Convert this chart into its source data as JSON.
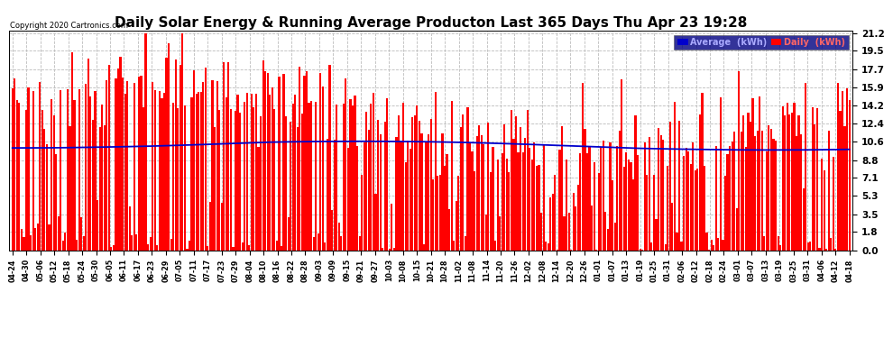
{
  "title": "Daily Solar Energy & Running Average Producton Last 365 Days Thu Apr 23 19:28",
  "copyright": "Copyright 2020 Cartronics.com",
  "yticks": [
    0.0,
    1.8,
    3.5,
    5.3,
    7.1,
    8.8,
    10.6,
    12.4,
    14.2,
    15.9,
    17.7,
    19.5,
    21.2
  ],
  "ymax": 21.5,
  "ymin": 0.0,
  "bar_color": "#ff0000",
  "avg_color": "#0000cc",
  "bg_color": "#ffffff",
  "grid_color": "#bbbbbb",
  "title_fontsize": 11,
  "legend_avg_label": "Average  (kWh)",
  "legend_daily_label": "Daily  (kWh)",
  "legend_bg": "#000080",
  "legend_avg_text": "#aaaaff",
  "legend_daily_text": "#ff6666",
  "n_days": 365,
  "x_tick_labels": [
    "04-24",
    "04-30",
    "05-06",
    "05-12",
    "05-18",
    "05-24",
    "05-30",
    "06-05",
    "06-11",
    "06-17",
    "06-23",
    "06-29",
    "07-05",
    "07-11",
    "07-17",
    "07-23",
    "07-29",
    "08-04",
    "08-10",
    "08-16",
    "08-22",
    "08-28",
    "09-03",
    "09-09",
    "09-15",
    "09-21",
    "09-27",
    "10-03",
    "10-08",
    "10-15",
    "10-21",
    "10-28",
    "11-02",
    "11-08",
    "11-14",
    "11-20",
    "11-26",
    "12-02",
    "12-08",
    "12-14",
    "12-20",
    "12-26",
    "01-01",
    "01-07",
    "01-13",
    "01-19",
    "01-25",
    "01-31",
    "02-06",
    "02-12",
    "02-18",
    "02-24",
    "03-01",
    "03-07",
    "03-13",
    "03-19",
    "03-25",
    "03-31",
    "04-06",
    "04-12",
    "04-18"
  ],
  "avg_line": [
    10.0,
    10.0,
    10.0,
    10.02,
    10.03,
    10.05,
    10.07,
    10.1,
    10.12,
    10.15,
    10.18,
    10.22,
    10.26,
    10.3,
    10.35,
    10.4,
    10.45,
    10.5,
    10.55,
    10.58,
    10.6,
    10.62,
    10.63,
    10.64,
    10.65,
    10.65,
    10.65,
    10.64,
    10.63,
    10.62,
    10.6,
    10.58,
    10.55,
    10.52,
    10.48,
    10.44,
    10.4,
    10.35,
    10.3,
    10.25,
    10.2,
    10.15,
    10.1,
    10.05,
    10.0,
    9.96,
    9.93,
    9.9,
    9.88,
    9.86,
    9.84,
    9.82,
    9.81,
    9.8,
    9.8,
    9.8,
    9.8,
    9.81,
    9.82,
    9.84,
    9.86
  ]
}
